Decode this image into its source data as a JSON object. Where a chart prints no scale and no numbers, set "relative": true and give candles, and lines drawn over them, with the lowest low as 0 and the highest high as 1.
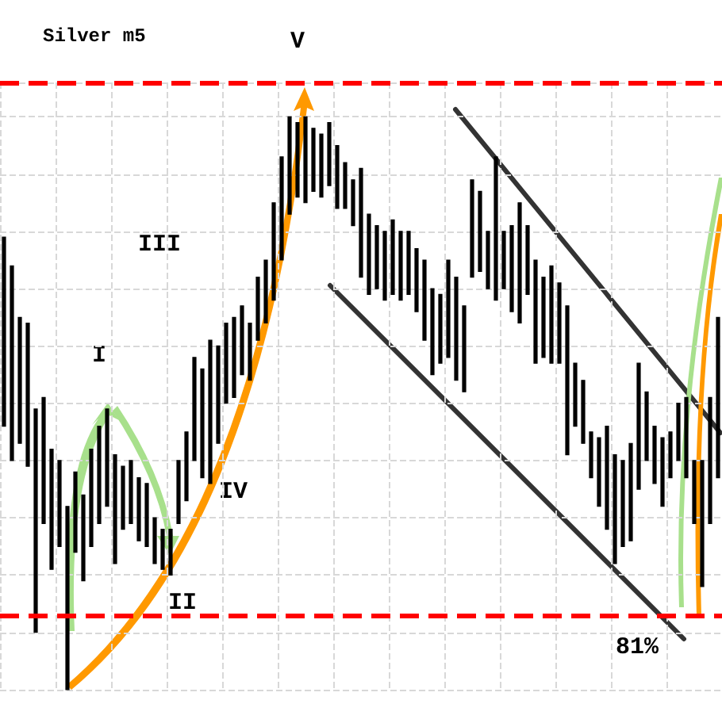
{
  "chart_data": {
    "type": "candlestick",
    "title": "Silver m5",
    "relative": true,
    "grid": true,
    "annotations": [
      "V",
      "III",
      "I",
      "IV",
      "II",
      "81%"
    ],
    "categories": [
      null,
      null,
      null,
      null,
      null,
      null,
      null,
      null,
      null,
      null,
      null,
      null,
      null,
      null,
      null,
      null,
      null,
      null,
      null,
      null,
      null,
      null,
      null,
      null,
      null,
      null,
      null,
      null,
      null,
      null,
      null,
      null,
      null,
      null,
      null,
      null,
      null,
      null,
      null,
      null,
      null,
      null,
      null,
      null,
      null,
      null,
      null,
      null,
      null,
      null,
      null,
      null,
      null,
      null,
      null,
      null,
      null,
      null,
      null,
      null,
      null,
      null,
      null,
      null,
      null,
      null,
      null,
      null,
      null,
      null,
      null,
      null,
      null,
      null,
      null,
      null,
      null,
      null,
      null,
      null,
      null,
      null,
      null,
      null,
      null,
      null,
      null,
      null,
      null,
      null,
      null
    ],
    "ohlc": [
      [
        0.46,
        0.79,
        0.46,
        0.79
      ],
      [
        0.4,
        0.74,
        0.4,
        0.74
      ],
      [
        0.43,
        0.65,
        0.43,
        0.65
      ],
      [
        0.39,
        0.64,
        0.39,
        0.64
      ],
      [
        0.1,
        0.49,
        0.1,
        0.49
      ],
      [
        0.29,
        0.51,
        0.29,
        0.51
      ],
      [
        0.21,
        0.42,
        0.21,
        0.42
      ],
      [
        0.25,
        0.4,
        0.25,
        0.4
      ],
      [
        0,
        0.32,
        0,
        0.32
      ],
      [
        0.24,
        0.38,
        0.24,
        0.38
      ],
      [
        0.19,
        0.34,
        0.19,
        0.34
      ],
      [
        0.25,
        0.42,
        0.25,
        0.42
      ],
      [
        0.29,
        0.46,
        0.29,
        0.46
      ],
      [
        0.32,
        0.49,
        0.32,
        0.49
      ],
      [
        0.22,
        0.41,
        0.22,
        0.41
      ],
      [
        0.28,
        0.39,
        0.28,
        0.39
      ],
      [
        0.29,
        0.4,
        0.29,
        0.4
      ],
      [
        0.26,
        0.37,
        0.26,
        0.37
      ],
      [
        0.25,
        0.36,
        0.25,
        0.36
      ],
      [
        0.22,
        0.3,
        0.22,
        0.3
      ],
      [
        0.21,
        0.28,
        0.21,
        0.28
      ],
      [
        0.2,
        0.28,
        0.2,
        0.28
      ],
      [
        0.29,
        0.4,
        0.29,
        0.4
      ],
      [
        0.33,
        0.45,
        0.33,
        0.45
      ],
      [
        0.4,
        0.58,
        0.4,
        0.58
      ],
      [
        0.37,
        0.56,
        0.37,
        0.56
      ],
      [
        0.36,
        0.61,
        0.36,
        0.61
      ],
      [
        0.43,
        0.6,
        0.43,
        0.6
      ],
      [
        0.5,
        0.64,
        0.5,
        0.64
      ],
      [
        0.51,
        0.65,
        0.51,
        0.65
      ],
      [
        0.55,
        0.67,
        0.55,
        0.67
      ],
      [
        0.54,
        0.64,
        0.54,
        0.64
      ],
      [
        0.61,
        0.72,
        0.61,
        0.72
      ],
      [
        0.64,
        0.75,
        0.64,
        0.75
      ],
      [
        0.68,
        0.85,
        0.68,
        0.85
      ],
      [
        0.75,
        0.93,
        0.75,
        0.93
      ],
      [
        0.83,
        1,
        0.83,
        1
      ],
      [
        0.86,
        0.99,
        0.86,
        0.99
      ],
      [
        0.85,
        1,
        0.85,
        1
      ],
      [
        0.87,
        0.98,
        0.87,
        0.98
      ],
      [
        0.86,
        0.97,
        0.86,
        0.97
      ],
      [
        0.88,
        0.99,
        0.88,
        0.99
      ],
      [
        0.84,
        0.95,
        0.84,
        0.95
      ],
      [
        0.84,
        0.92,
        0.84,
        0.92
      ],
      [
        0.81,
        0.89,
        0.81,
        0.89
      ],
      [
        0.72,
        0.91,
        0.72,
        0.91
      ],
      [
        0.69,
        0.83,
        0.69,
        0.83
      ],
      [
        0.7,
        0.81,
        0.7,
        0.81
      ],
      [
        0.68,
        0.8,
        0.68,
        0.8
      ],
      [
        0.69,
        0.82,
        0.69,
        0.82
      ],
      [
        0.68,
        0.8,
        0.68,
        0.8
      ],
      [
        0.69,
        0.8,
        0.69,
        0.8
      ],
      [
        0.66,
        0.77,
        0.66,
        0.77
      ],
      [
        0.61,
        0.75,
        0.61,
        0.75
      ],
      [
        0.55,
        0.7,
        0.55,
        0.7
      ],
      [
        0.57,
        0.69,
        0.57,
        0.69
      ],
      [
        0.58,
        0.75,
        0.58,
        0.75
      ],
      [
        0.54,
        0.72,
        0.54,
        0.72
      ],
      [
        0.52,
        0.67,
        0.52,
        0.67
      ],
      [
        0.72,
        0.89,
        0.72,
        0.89
      ],
      [
        0.73,
        0.87,
        0.73,
        0.87
      ],
      [
        0.7,
        0.8,
        0.7,
        0.8
      ],
      [
        0.68,
        0.93,
        0.68,
        0.93
      ],
      [
        0.7,
        0.8,
        0.7,
        0.8
      ],
      [
        0.66,
        0.81,
        0.66,
        0.81
      ],
      [
        0.64,
        0.85,
        0.64,
        0.85
      ],
      [
        0.69,
        0.81,
        0.69,
        0.81
      ],
      [
        0.57,
        0.75,
        0.57,
        0.75
      ],
      [
        0.58,
        0.72,
        0.58,
        0.72
      ],
      [
        0.57,
        0.74,
        0.57,
        0.74
      ],
      [
        0.57,
        0.71,
        0.57,
        0.71
      ],
      [
        0.41,
        0.67,
        0.41,
        0.67
      ],
      [
        0.46,
        0.57,
        0.46,
        0.57
      ],
      [
        0.43,
        0.54,
        0.43,
        0.54
      ],
      [
        0.37,
        0.45,
        0.37,
        0.45
      ],
      [
        0.32,
        0.44,
        0.32,
        0.44
      ],
      [
        0.28,
        0.46,
        0.28,
        0.46
      ],
      [
        0.22,
        0.41,
        0.22,
        0.41
      ],
      [
        0.25,
        0.4,
        0.25,
        0.4
      ],
      [
        0.26,
        0.43,
        0.26,
        0.43
      ],
      [
        0.35,
        0.57,
        0.35,
        0.57
      ],
      [
        0.4,
        0.52,
        0.4,
        0.52
      ],
      [
        0.36,
        0.46,
        0.36,
        0.46
      ],
      [
        0.32,
        0.44,
        0.32,
        0.44
      ],
      [
        0.37,
        0.45,
        0.37,
        0.45
      ],
      [
        0.4,
        0.5,
        0.4,
        0.5
      ],
      [
        0.37,
        0.51,
        0.37,
        0.51
      ],
      [
        0.29,
        0.4,
        0.29,
        0.4
      ],
      [
        0.18,
        0.4,
        0.18,
        0.4
      ],
      [
        0.29,
        0.51,
        0.29,
        0.51
      ],
      [
        0.37,
        0.65,
        0.37,
        0.65
      ]
    ],
    "color": "#000000",
    "ref_lines": [
      {
        "axis": "y",
        "value": 1.06,
        "color": "#ff0000",
        "line_style": "dashed"
      },
      {
        "axis": "y",
        "value": 0.13,
        "color": "#ff0000",
        "line_style": "dashed"
      }
    ]
  }
}
